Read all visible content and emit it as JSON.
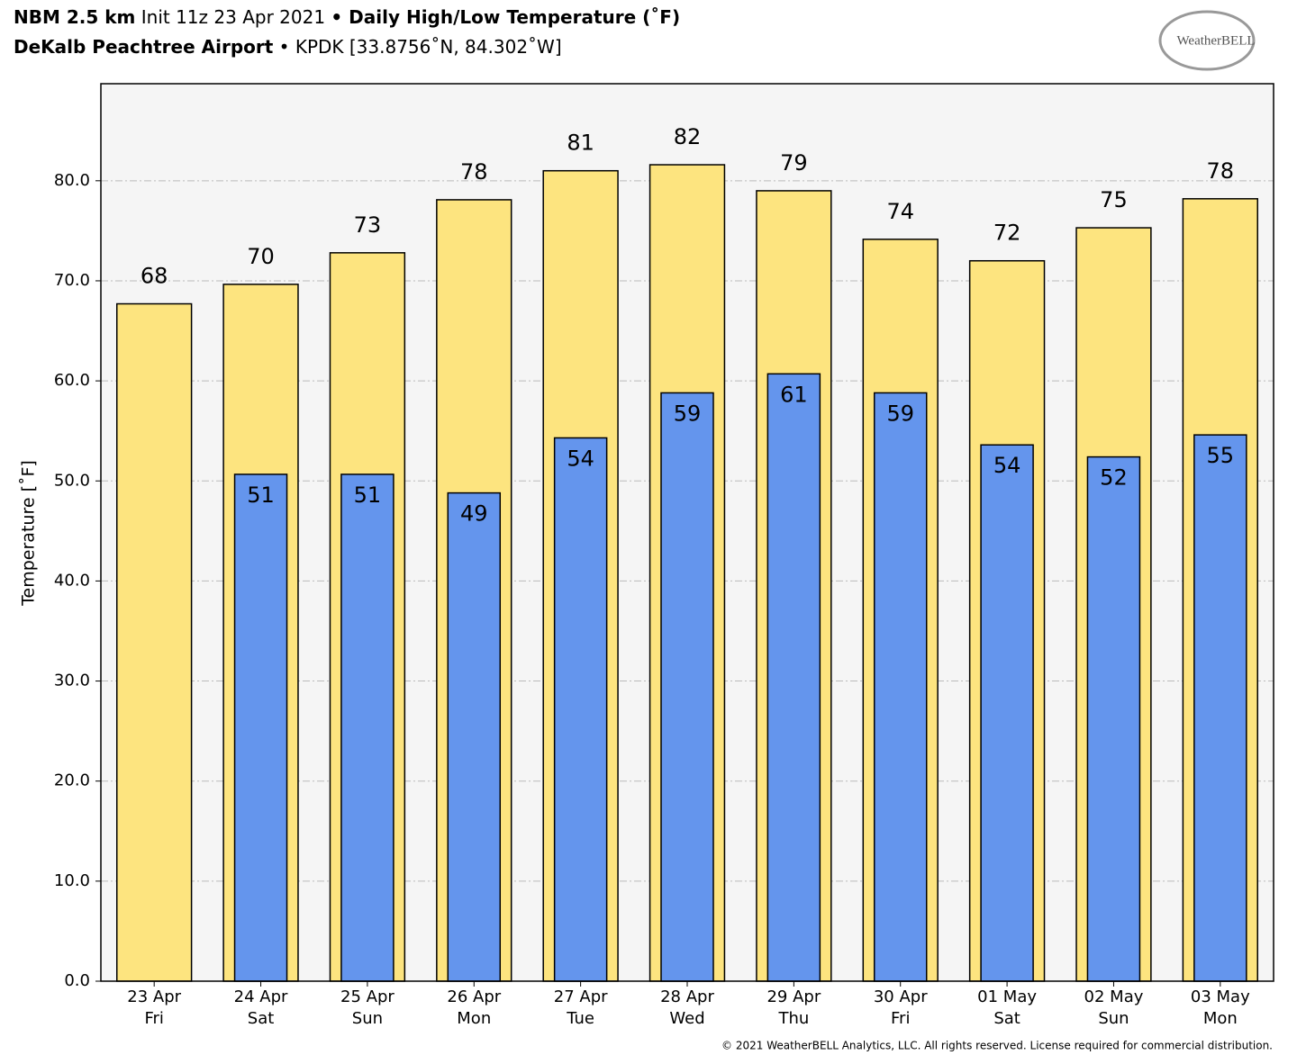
{
  "chart_data": {
    "type": "bar",
    "title_model": "NBM 2.5 km",
    "title_init": "Init 11z 23 Apr 2021",
    "title": "• Daily High/Low Temperature (˚F)",
    "subtitle_station": "DeKalb Peachtree Airport",
    "subtitle": "• KPDK [33.8756˚N, 84.302˚W]",
    "logo": "WeatherBELL",
    "y_label": "Temperature [˚F]",
    "footer": "© 2021 WeatherBELL Analytics, LLC. All rights reserved. License required for commercial distribution.",
    "categories": [
      "23 Apr",
      "24 Apr",
      "25 Apr",
      "26 Apr",
      "27 Apr",
      "28 Apr",
      "29 Apr",
      "30 Apr",
      "01 May",
      "02 May",
      "03 May"
    ],
    "category_days": [
      "Fri",
      "Sat",
      "Sun",
      "Mon",
      "Tue",
      "Wed",
      "Thu",
      "Fri",
      "Sat",
      "Sun",
      "Mon"
    ],
    "series": [
      {
        "color": "#fde47f",
        "values": [
          67.7,
          69.65,
          72.8,
          78.1,
          81.0,
          81.6,
          79.0,
          74.15,
          72.0,
          75.3,
          78.2
        ],
        "value_labels": [
          "68",
          "70",
          "73",
          "78",
          "81",
          "82",
          "79",
          "74",
          "72",
          "75",
          "78"
        ]
      },
      {
        "color": "#6495ed",
        "values": [
          null,
          50.66,
          50.66,
          48.8,
          54.3,
          58.8,
          60.7,
          58.8,
          53.6,
          52.4,
          54.6
        ],
        "value_labels": [
          null,
          "51",
          "51",
          "49",
          "54",
          "59",
          "61",
          "59",
          "54",
          "52",
          "55"
        ]
      }
    ],
    "ylim": [
      0,
      89.7
    ],
    "yticks": [
      {
        "value": 0,
        "label": "0.0"
      },
      {
        "value": 10,
        "label": "10.0"
      },
      {
        "value": 20,
        "label": "20.0"
      },
      {
        "value": 30,
        "label": "30.0"
      },
      {
        "value": 40,
        "label": "40.0"
      },
      {
        "value": 50,
        "label": "50.0"
      },
      {
        "value": 60,
        "label": "60.0"
      },
      {
        "value": 70,
        "label": "70.0"
      },
      {
        "value": 80,
        "label": "80.0"
      }
    ],
    "grid": true
  }
}
